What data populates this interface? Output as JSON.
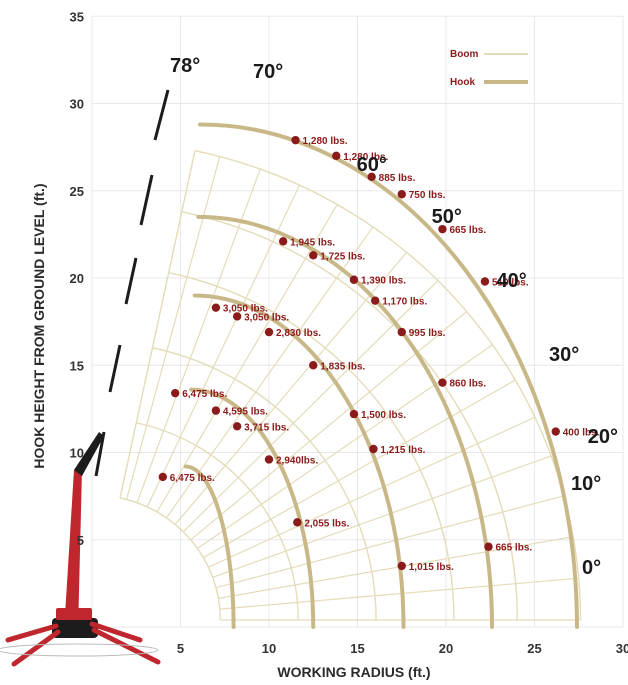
{
  "colors": {
    "grid": "#e8e8e8",
    "boom_line": "#e4dcb8",
    "hook_line": "#c9b887",
    "point": "#8b1a1a",
    "label": "#8b1a1a",
    "crane_red": "#c0262d",
    "crane_dark": "#1c1c1c"
  },
  "legend": {
    "boom": "Boom",
    "hook": "Hook"
  },
  "axes": {
    "xlabel": "WORKING RADIUS (ft.)",
    "ylabel": "HOOK HEIGHT FROM GROUND LEVEL (ft.)",
    "xlim": [
      0,
      30
    ],
    "ylim": [
      0,
      35
    ],
    "xticks": [
      "5",
      "10",
      "15",
      "20",
      "25",
      "30"
    ],
    "yticks": [
      "5",
      "10",
      "15",
      "20",
      "25",
      "30",
      "35"
    ]
  },
  "angles": [
    {
      "label": "78°",
      "deg": 78
    },
    {
      "label": "70°",
      "deg": 70
    },
    {
      "label": "60°",
      "deg": 60
    },
    {
      "label": "50°",
      "deg": 50
    },
    {
      "label": "40°",
      "deg": 40
    },
    {
      "label": "30°",
      "deg": 30
    },
    {
      "label": "20°",
      "deg": 20
    },
    {
      "label": "10°",
      "deg": 10
    },
    {
      "label": "0°",
      "deg": 0
    }
  ],
  "chart_data": {
    "type": "scatter",
    "title": "",
    "xlabel": "WORKING RADIUS (ft.)",
    "ylabel": "HOOK HEIGHT FROM GROUND LEVEL (ft.)",
    "xlim": [
      0,
      30
    ],
    "ylim": [
      0,
      35
    ],
    "grid": true,
    "legend_position": "top-right",
    "hook_arcs": [
      {
        "x_start": 5.3,
        "y_start": 9.2,
        "x_end": 8.0,
        "y_end": 0
      },
      {
        "x_start": 5.6,
        "y_start": 13.6,
        "x_end": 12.5,
        "y_end": 0
      },
      {
        "x_start": 5.8,
        "y_start": 19.0,
        "x_end": 17.6,
        "y_end": 0
      },
      {
        "x_start": 6.0,
        "y_start": 23.5,
        "x_end": 22.6,
        "y_end": 0
      },
      {
        "x_start": 6.1,
        "y_start": 28.8,
        "x_end": 27.4,
        "y_end": 0
      }
    ],
    "points": [
      {
        "x": 11.5,
        "y": 27.9,
        "label": "1,280 lbs."
      },
      {
        "x": 13.8,
        "y": 27.0,
        "label": "1,280 lbs."
      },
      {
        "x": 15.8,
        "y": 25.8,
        "label": "885 lbs."
      },
      {
        "x": 17.5,
        "y": 24.8,
        "label": "750 lbs."
      },
      {
        "x": 19.8,
        "y": 22.8,
        "label": "665 lbs."
      },
      {
        "x": 22.2,
        "y": 19.8,
        "label": "510 lbs."
      },
      {
        "x": 26.2,
        "y": 11.2,
        "label": "400 lbs."
      },
      {
        "x": 10.8,
        "y": 22.1,
        "label": "1,945 lbs."
      },
      {
        "x": 12.5,
        "y": 21.3,
        "label": "1,725 lbs."
      },
      {
        "x": 14.8,
        "y": 19.9,
        "label": "1,390 lbs."
      },
      {
        "x": 16.0,
        "y": 18.7,
        "label": "1,170 lbs."
      },
      {
        "x": 17.5,
        "y": 16.9,
        "label": "995 lbs."
      },
      {
        "x": 19.8,
        "y": 14.0,
        "label": "860 lbs."
      },
      {
        "x": 22.4,
        "y": 4.6,
        "label": "665 lbs."
      },
      {
        "x": 7.0,
        "y": 18.3,
        "label": "3,050 lbs."
      },
      {
        "x": 8.2,
        "y": 17.8,
        "label": "3,050 lbs."
      },
      {
        "x": 10.0,
        "y": 16.9,
        "label": "2,830 lbs."
      },
      {
        "x": 12.5,
        "y": 15.0,
        "label": "1,835 lbs."
      },
      {
        "x": 14.8,
        "y": 12.2,
        "label": "1,500 lbs."
      },
      {
        "x": 15.9,
        "y": 10.2,
        "label": "1,215 lbs."
      },
      {
        "x": 17.5,
        "y": 3.5,
        "label": "1,015 lbs."
      },
      {
        "x": 4.7,
        "y": 13.4,
        "label": "6,475 lbs."
      },
      {
        "x": 7.0,
        "y": 12.4,
        "label": "4,595 lbs."
      },
      {
        "x": 8.2,
        "y": 11.5,
        "label": "3,715 lbs."
      },
      {
        "x": 10.0,
        "y": 9.6,
        "label": "2,940lbs."
      },
      {
        "x": 11.6,
        "y": 6.0,
        "label": "2,055 lbs."
      },
      {
        "x": 4.0,
        "y": 8.6,
        "label": "6,475 lbs."
      }
    ]
  }
}
